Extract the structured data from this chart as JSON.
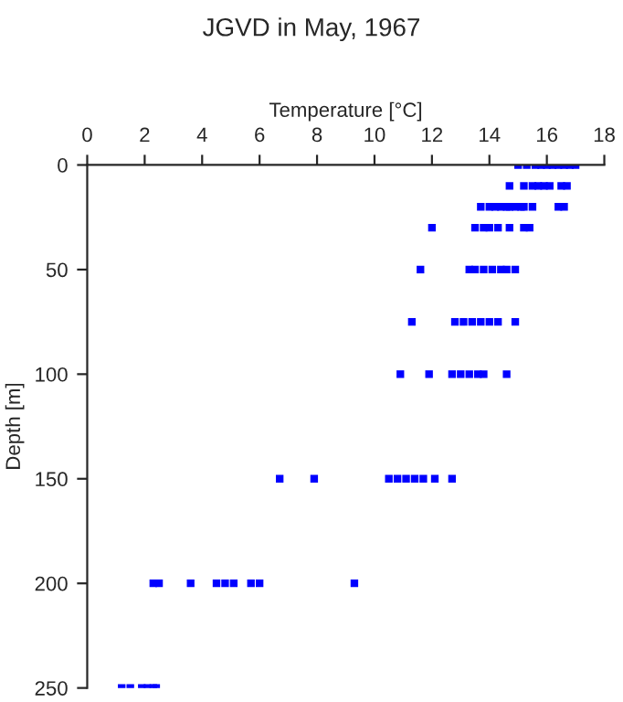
{
  "chart_data": {
    "type": "scatter",
    "title": "JGVD in May, 1967",
    "xlabel": "Temperature [°C]",
    "ylabel": "Depth [m]",
    "series": [
      {
        "color": "#0000ff",
        "x": [
          15.0,
          15.3,
          15.6,
          15.8,
          16.0,
          16.2,
          16.4,
          16.6,
          16.8,
          17.0,
          14.7,
          15.2,
          15.5,
          15.7,
          15.9,
          16.1,
          16.5,
          16.7,
          13.7,
          14.0,
          14.2,
          14.4,
          14.6,
          14.7,
          14.9,
          15.1,
          15.2,
          15.5,
          16.4,
          16.6,
          12.0,
          13.5,
          13.8,
          14.0,
          14.3,
          14.7,
          15.2,
          15.4,
          11.6,
          13.3,
          13.5,
          13.8,
          14.1,
          14.4,
          14.6,
          14.9,
          11.3,
          12.8,
          13.1,
          13.4,
          13.7,
          14.0,
          14.3,
          14.9,
          10.9,
          11.9,
          12.7,
          13.0,
          13.3,
          13.6,
          13.8,
          14.6,
          6.7,
          7.9,
          10.5,
          10.8,
          11.1,
          11.4,
          11.7,
          12.1,
          12.7,
          2.3,
          2.5,
          3.6,
          4.5,
          4.8,
          5.1,
          5.7,
          6.0,
          9.3,
          1.2,
          1.5,
          1.9,
          2.1,
          2.3,
          2.4
        ],
        "values": [
          0,
          0,
          0,
          0,
          0,
          0,
          0,
          0,
          0,
          0,
          10,
          10,
          10,
          10,
          10,
          10,
          10,
          10,
          20,
          20,
          20,
          20,
          20,
          20,
          20,
          20,
          20,
          20,
          20,
          20,
          30,
          30,
          30,
          30,
          30,
          30,
          30,
          30,
          50,
          50,
          50,
          50,
          50,
          50,
          50,
          50,
          75,
          75,
          75,
          75,
          75,
          75,
          75,
          75,
          100,
          100,
          100,
          100,
          100,
          100,
          100,
          100,
          150,
          150,
          150,
          150,
          150,
          150,
          150,
          150,
          150,
          200,
          200,
          200,
          200,
          200,
          200,
          200,
          200,
          200,
          250,
          250,
          250,
          250,
          250,
          250
        ]
      }
    ],
    "xlim": [
      0,
      18
    ],
    "xticks": [
      0,
      2,
      4,
      6,
      8,
      10,
      12,
      14,
      16,
      18
    ],
    "ylim": [
      250,
      0
    ],
    "yticks": [
      0,
      50,
      100,
      150,
      200,
      250
    ],
    "marker": "square",
    "grid": false,
    "legend": false
  }
}
